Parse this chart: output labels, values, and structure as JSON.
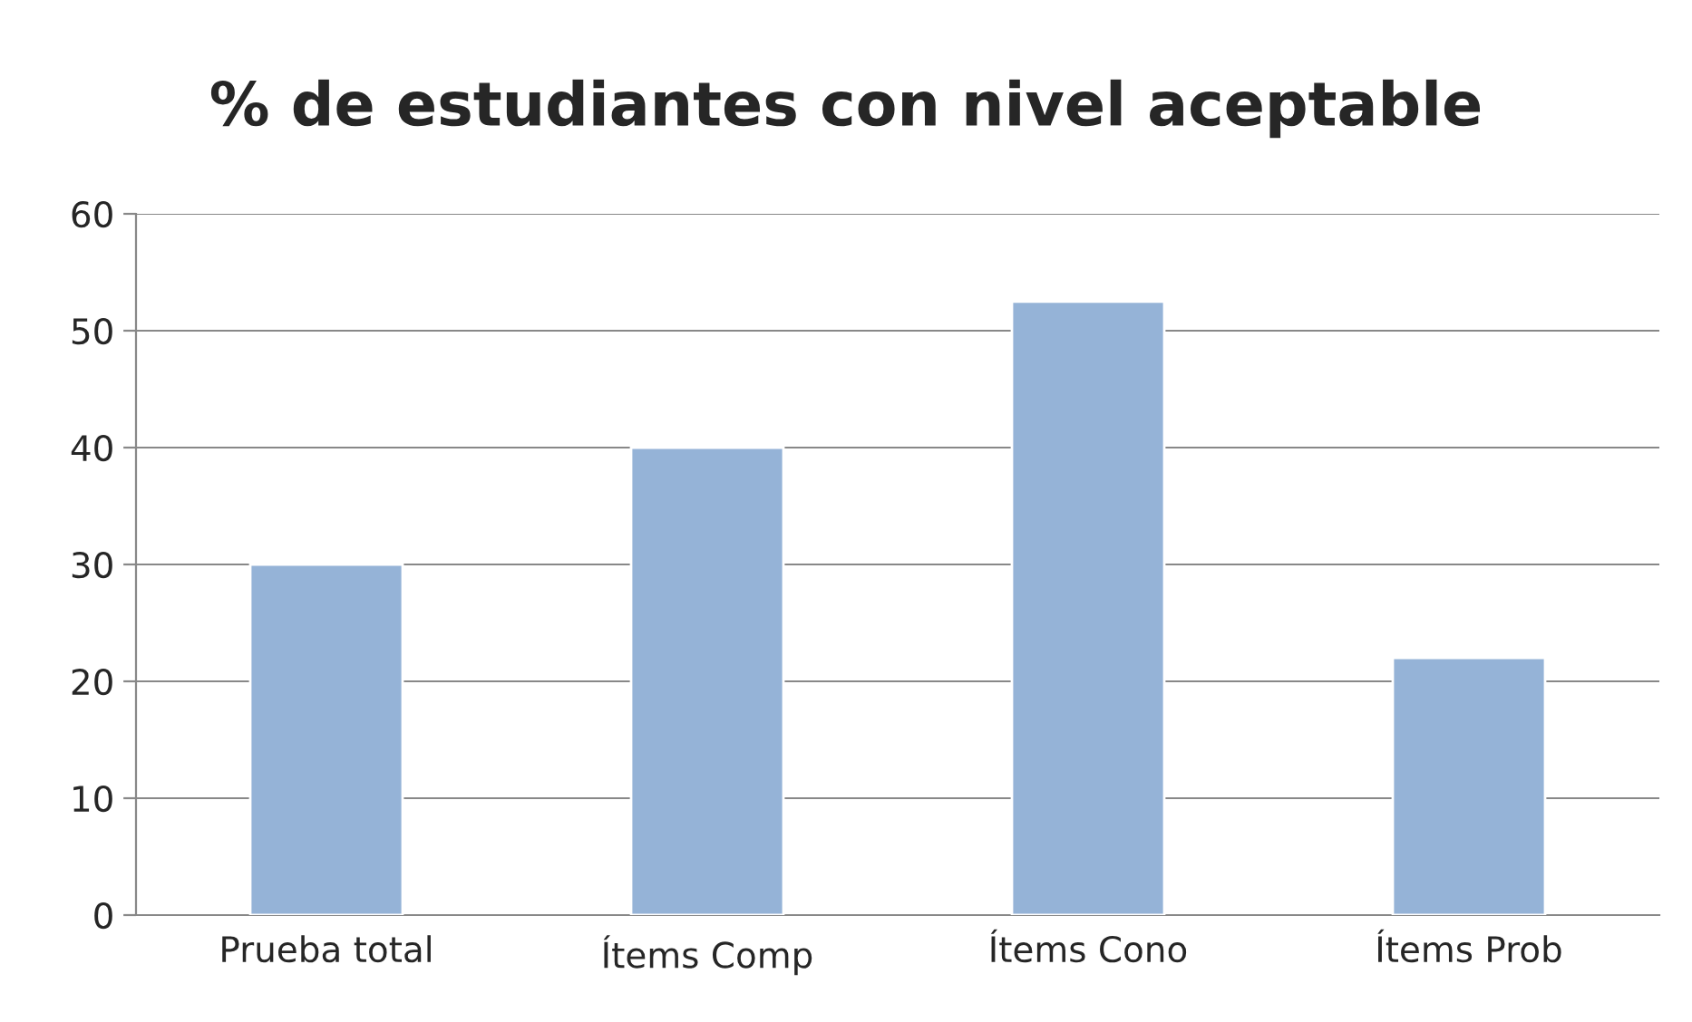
{
  "chart_data": {
    "type": "bar",
    "title": "% de estudiantes con nivel aceptable",
    "categories": [
      "Prueba total",
      "Ítems Comp",
      "Ítems Cono",
      "Ítems Prob"
    ],
    "values": [
      30,
      40,
      52.5,
      22
    ],
    "color": "#95b3d7",
    "ylim": [
      0,
      60
    ],
    "yticks": [
      0,
      10,
      20,
      30,
      40,
      50,
      60
    ],
    "grid": "y",
    "legend": false
  }
}
